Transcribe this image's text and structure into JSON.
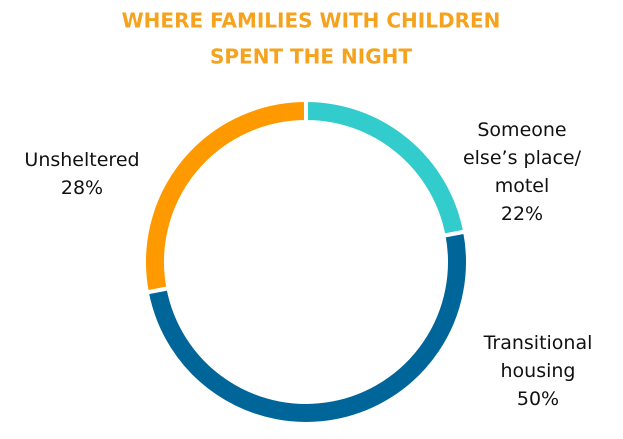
{
  "chart_data": {
    "type": "donut",
    "title": [
      "WHERE FAMILIES WITH CHILDREN",
      "SPENT THE NIGHT"
    ],
    "categories": [
      "Someone\nelse’s place/\nmotel",
      "Transitional\nhousing",
      "Unsheltered"
    ],
    "values": [
      22,
      50,
      28
    ],
    "value_labels": [
      "22%",
      "50%",
      "28%"
    ],
    "colors": [
      "#33cccc",
      "#006699",
      "#ff9900"
    ]
  }
}
